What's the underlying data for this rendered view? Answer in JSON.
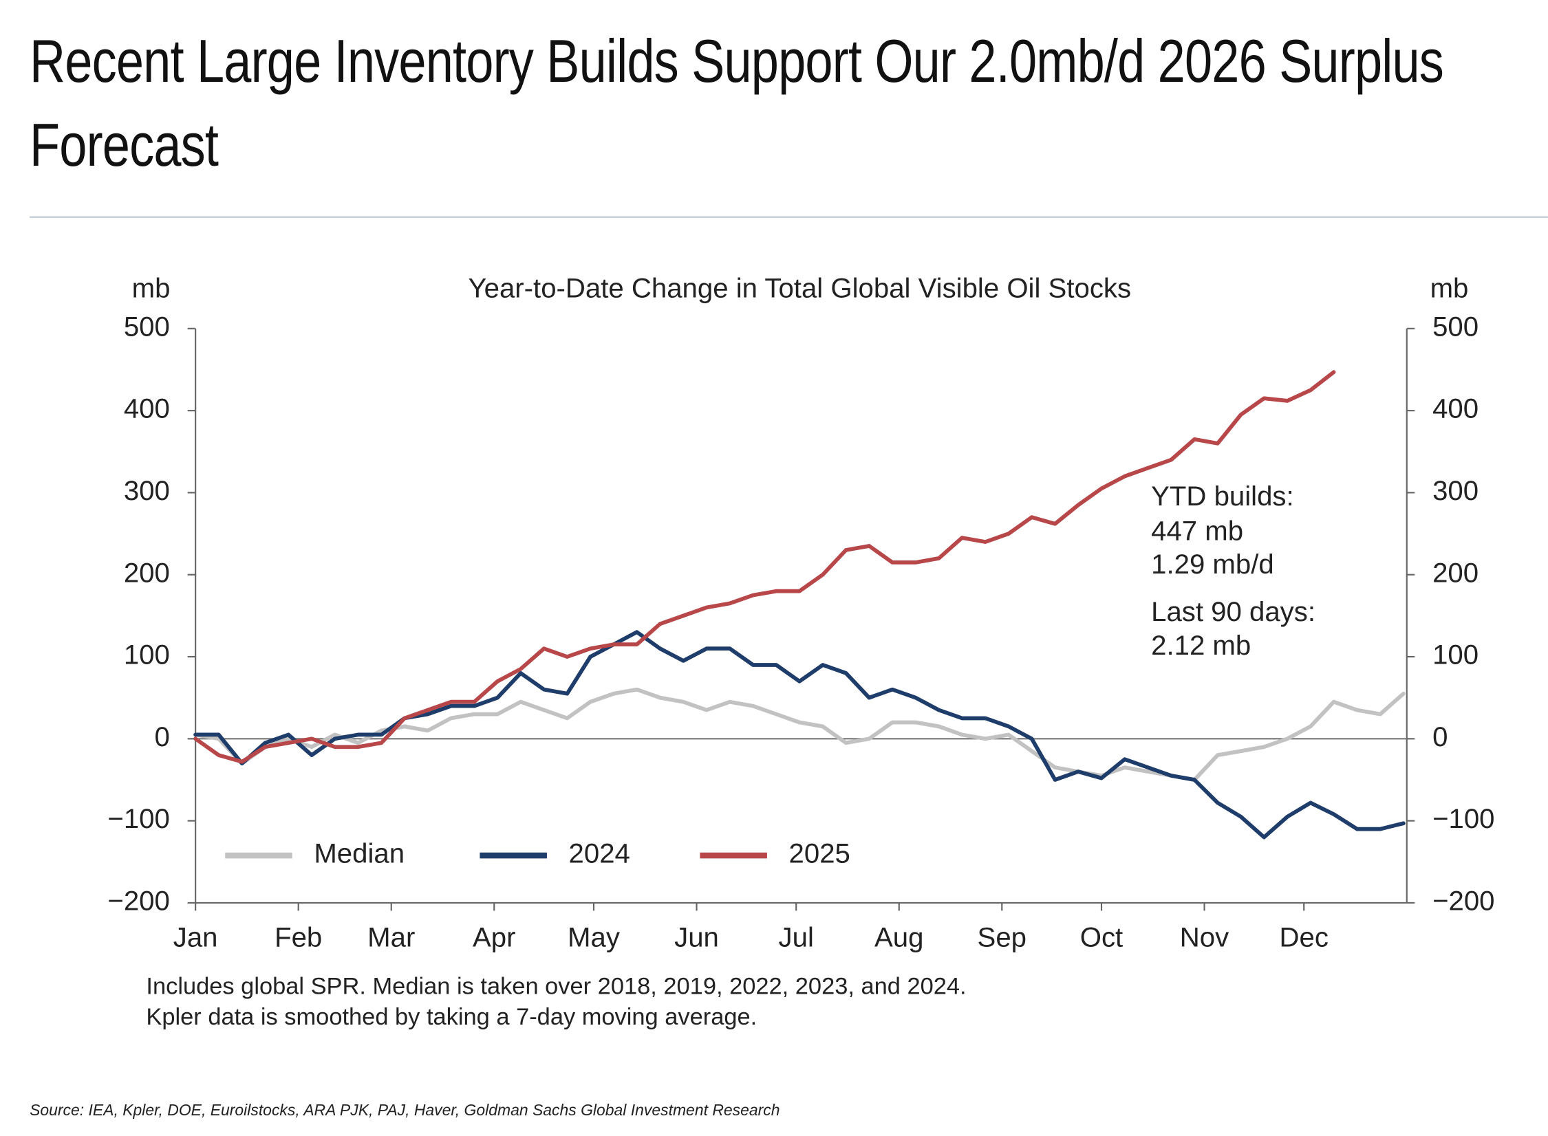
{
  "header": {
    "title": "Recent Large Inventory Builds Support Our 2.0mb/d 2026 Surplus Forecast"
  },
  "chart_data": {
    "type": "line",
    "title": "Year-to-Date Change in Total Global Visible Oil Stocks",
    "y_label": "mb",
    "y2_label": "mb",
    "x": [
      0,
      7,
      14,
      21,
      28,
      35,
      42,
      49,
      56,
      63,
      70,
      77,
      84,
      91,
      98,
      105,
      112,
      119,
      126,
      133,
      140,
      147,
      154,
      161,
      168,
      175,
      182,
      189,
      196,
      203,
      210,
      217,
      224,
      231,
      238,
      245,
      252,
      259,
      266,
      273,
      280,
      287,
      294,
      301,
      308,
      315,
      322,
      329,
      336,
      343,
      350,
      357,
      364
    ],
    "xlim": [
      0,
      365
    ],
    "xticks": [
      {
        "value": 0,
        "label": "Jan"
      },
      {
        "value": 31,
        "label": "Feb"
      },
      {
        "value": 59,
        "label": "Mar"
      },
      {
        "value": 90,
        "label": "Apr"
      },
      {
        "value": 120,
        "label": "May"
      },
      {
        "value": 151,
        "label": "Jun"
      },
      {
        "value": 181,
        "label": "Jul"
      },
      {
        "value": 212,
        "label": "Aug"
      },
      {
        "value": 243,
        "label": "Sep"
      },
      {
        "value": 273,
        "label": "Oct"
      },
      {
        "value": 304,
        "label": "Nov"
      },
      {
        "value": 334,
        "label": "Dec"
      }
    ],
    "ylim": [
      -200,
      500
    ],
    "yticks": [
      {
        "value": -200,
        "label": "−200"
      },
      {
        "value": -100,
        "label": "−100"
      },
      0,
      100,
      200,
      300,
      400,
      500
    ],
    "y2lim": [
      -200,
      500
    ],
    "y2ticks": [
      {
        "value": -200,
        "label": "−200"
      },
      {
        "value": -100,
        "label": "−100"
      },
      0,
      100,
      200,
      300,
      400,
      500
    ],
    "zero_line": true,
    "grid": false,
    "legend": "lower left",
    "series": [
      {
        "name": "Median",
        "color": "#c2c2c2",
        "values": [
          5,
          0,
          -30,
          -10,
          0,
          -10,
          5,
          -5,
          10,
          15,
          10,
          25,
          30,
          30,
          45,
          35,
          25,
          45,
          55,
          60,
          50,
          45,
          35,
          45,
          40,
          30,
          20,
          15,
          -5,
          0,
          20,
          20,
          15,
          5,
          0,
          5,
          -15,
          -35,
          -40,
          -45,
          -35,
          -40,
          -45,
          -50,
          -20,
          -15,
          -10,
          0,
          15,
          45,
          35,
          30,
          55
        ]
      },
      {
        "name": "2024",
        "color": "#1f3d6b",
        "values": [
          5,
          5,
          -30,
          -5,
          5,
          -20,
          0,
          5,
          5,
          25,
          30,
          40,
          40,
          50,
          80,
          60,
          55,
          100,
          115,
          130,
          110,
          95,
          110,
          110,
          90,
          90,
          70,
          90,
          80,
          50,
          60,
          50,
          35,
          25,
          25,
          15,
          0,
          -50,
          -40,
          -48,
          -25,
          -35,
          -45,
          -50,
          -78,
          -95,
          -120,
          -95,
          -78,
          -92,
          -110,
          -110,
          -103
        ]
      },
      {
        "name": "2025",
        "color": "#b8474a",
        "values": [
          0,
          -20,
          -28,
          -10,
          -5,
          0,
          -10,
          -10,
          -5,
          25,
          35,
          45,
          45,
          70,
          85,
          110,
          100,
          110,
          115,
          115,
          140,
          150,
          160,
          165,
          175,
          180,
          180,
          200,
          230,
          235,
          215,
          215,
          220,
          245,
          240,
          250,
          270,
          262,
          285,
          305,
          320,
          330,
          340,
          365,
          360,
          395,
          415,
          412,
          425,
          447,
          null,
          null,
          null
        ]
      }
    ],
    "annotations": [
      "YTD builds:",
      "447 mb",
      "1.29 mb/d",
      "Last 90 days:",
      "2.12 mb"
    ]
  },
  "footnotes": [
    "Includes global SPR. Median is taken over 2018, 2019, 2022, 2023, and 2024.",
    "Kpler data is smoothed by taking a 7-day moving average."
  ],
  "source": "Source: IEA, Kpler, DOE, Euroilstocks, ARA PJK, PAJ, Haver, Goldman Sachs Global Investment Research"
}
